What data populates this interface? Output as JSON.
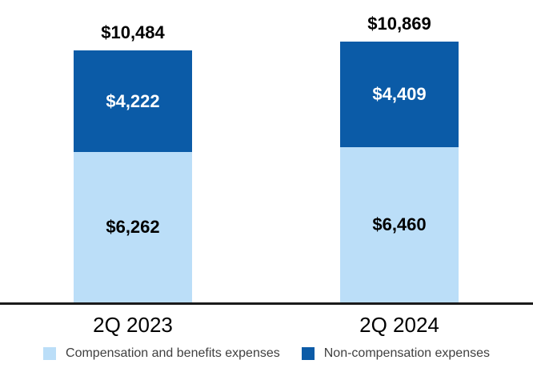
{
  "chart_data": {
    "type": "bar",
    "subtype": "stacked",
    "title": "",
    "categories": [
      "2Q 2023",
      "2Q 2024"
    ],
    "series": [
      {
        "name": "Compensation and benefits expenses",
        "color": "#BBDEF8",
        "label_color": "#000000",
        "values": [
          6262,
          6460
        ],
        "values_formatted": [
          "$6,262",
          "$6,460"
        ]
      },
      {
        "name": "Non-compensation expenses",
        "color": "#0B5BA7",
        "label_color": "#FFFFFF",
        "values": [
          4222,
          4409
        ],
        "values_formatted": [
          "$4,222",
          "$4,409"
        ]
      }
    ],
    "totals": [
      10484,
      10869
    ],
    "totals_formatted": [
      "$10,484",
      "$10,869"
    ],
    "ylim": [
      0,
      11300
    ],
    "grid": false,
    "y_axis_visible": false,
    "legend_position": "bottom",
    "axis_line_color": "#1A1A1A",
    "legend_text_color": "#404040"
  }
}
